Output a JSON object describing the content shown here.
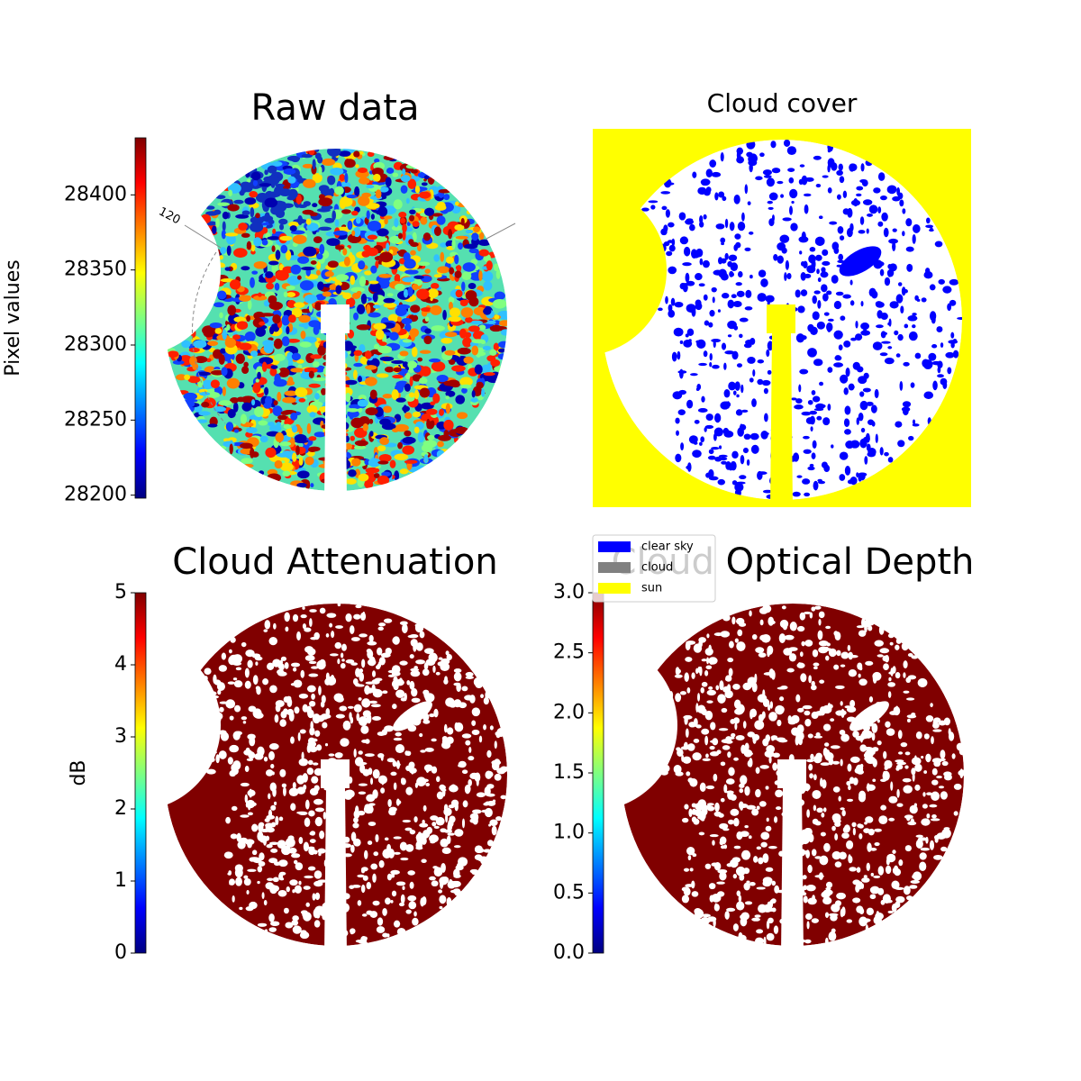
{
  "chart_data": [
    {
      "type": "image",
      "title": "Raw data",
      "annotations": [
        "120"
      ],
      "colorbar": {
        "label": "Pixel values",
        "ylim": [
          28198,
          28438
        ],
        "yticks": [
          28200,
          28250,
          28300,
          28350,
          28400
        ]
      }
    },
    {
      "type": "image",
      "title": "Cloud cover",
      "series": [
        {
          "name": "clear sky",
          "color": "#0000ff"
        },
        {
          "name": "cloud",
          "color": "#808080"
        },
        {
          "name": "sun",
          "color": "#ffff00"
        }
      ]
    },
    {
      "type": "image",
      "title": "Cloud Attenuation",
      "colorbar": {
        "label": "dB",
        "ylim": [
          0,
          5
        ],
        "yticks": [
          0,
          1,
          2,
          3,
          4,
          5
        ]
      }
    },
    {
      "type": "image",
      "title": "Cloud Optical Depth",
      "colorbar": {
        "ylim": [
          0,
          3
        ],
        "yticks": [
          {
            "value": 0,
            "label": "0.0"
          },
          0.5,
          {
            "value": 1,
            "label": "1.0"
          },
          1.5,
          {
            "value": 2,
            "label": "2.0"
          },
          2.5,
          {
            "value": 3,
            "label": "3.0"
          }
        ]
      }
    }
  ]
}
